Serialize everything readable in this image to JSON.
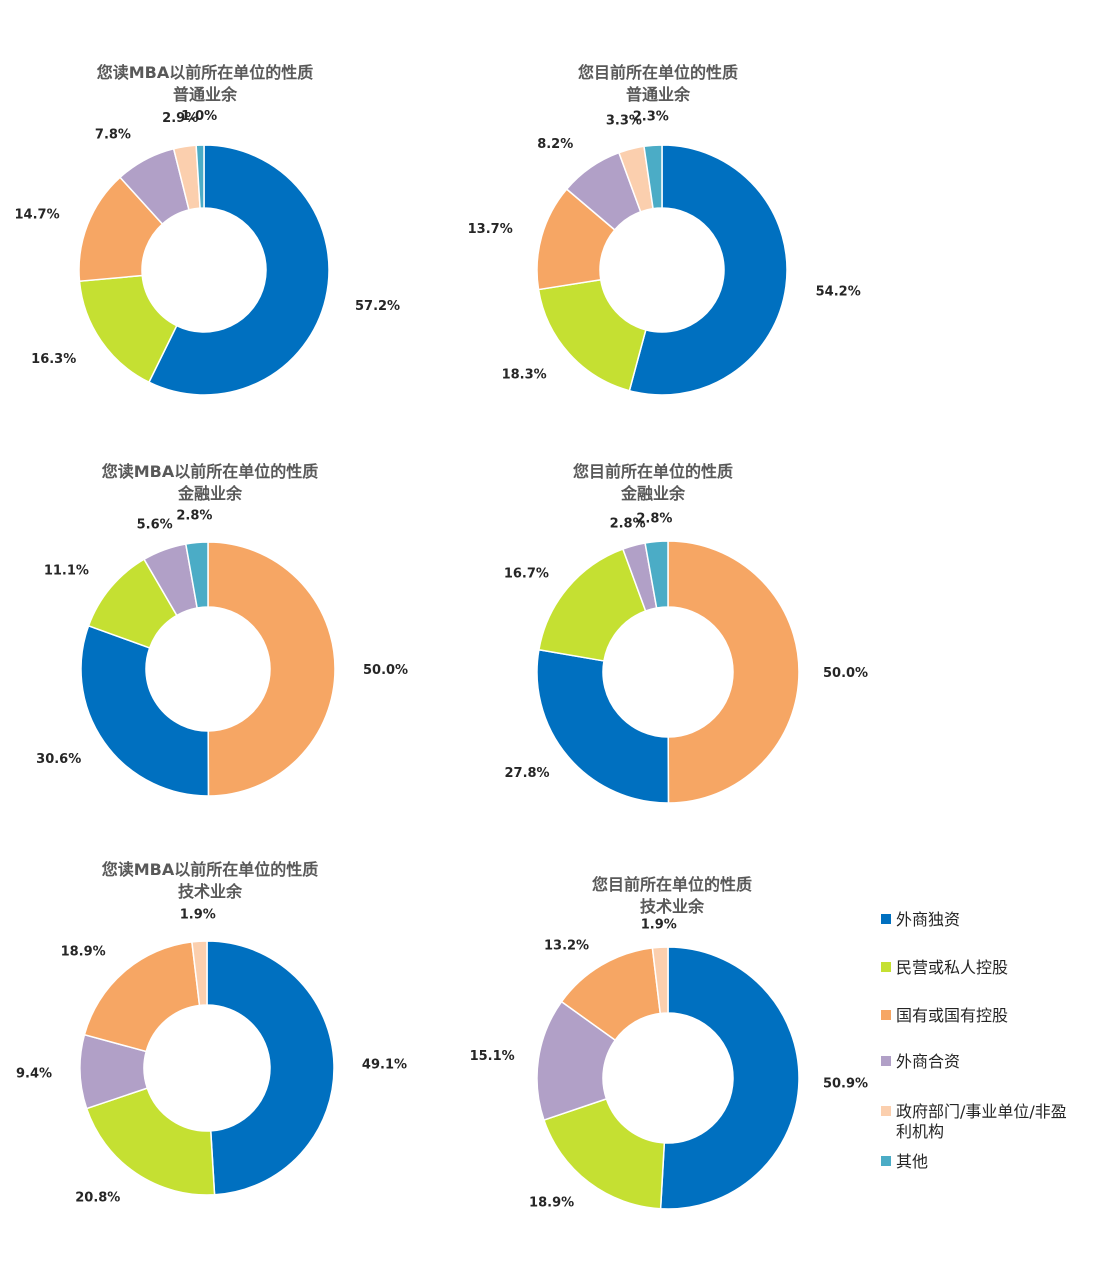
{
  "legend": {
    "entries": [
      {
        "label": "外商独资",
        "color": "#0070C0"
      },
      {
        "label": "民营或私人控股",
        "color": "#C5E032"
      },
      {
        "label": "国有或国有控股",
        "color": "#F6A664"
      },
      {
        "label": "外商合资",
        "color": "#B1A0C7"
      },
      {
        "label": [
          "政府部门/事业单位/非盈",
          "利机构"
        ],
        "color": "#FBCFAE"
      },
      {
        "label": "其他",
        "color": "#4BACC6"
      }
    ]
  },
  "chart_data": [
    {
      "type": "pie",
      "title": [
        "您读MBA以前所在单位的性质",
        "普通业余"
      ],
      "categories": [
        "外商独资",
        "民营或私人控股",
        "国有或国有控股",
        "外商合资",
        "政府部门/事业单位/非盈利机构",
        "其他"
      ],
      "values": [
        57.2,
        16.3,
        14.7,
        7.8,
        2.9,
        1.0
      ],
      "labels": [
        "57.2%",
        "16.3%",
        "14.7%",
        "7.8%",
        "2.9%",
        "1.0%"
      ]
    },
    {
      "type": "pie",
      "title": [
        "您目前所在单位的性质",
        "普通业余"
      ],
      "categories": [
        "外商独资",
        "民营或私人控股",
        "国有或国有控股",
        "外商合资",
        "政府部门/事业单位/非盈利机构",
        "其他"
      ],
      "values": [
        54.2,
        18.3,
        13.7,
        8.2,
        3.3,
        2.3
      ],
      "labels": [
        "54.2%",
        "18.3%",
        "13.7%",
        "8.2%",
        "3.3%",
        "2.3%"
      ]
    },
    {
      "type": "pie",
      "title": [
        "您读MBA以前所在单位的性质",
        "金融业余"
      ],
      "categories": [
        "国有或国有控股",
        "外商独资",
        "民营或私人控股",
        "外商合资",
        "其他"
      ],
      "values": [
        50.0,
        30.6,
        11.1,
        5.6,
        2.8
      ],
      "labels": [
        "50.0%",
        "30.6%",
        "11.1%",
        "5.6%",
        "2.8%"
      ]
    },
    {
      "type": "pie",
      "title": [
        "您目前所在单位的性质",
        "金融业余"
      ],
      "categories": [
        "国有或国有控股",
        "外商独资",
        "民营或私人控股",
        "外商合资",
        "其他"
      ],
      "values": [
        50.0,
        27.8,
        16.7,
        2.8,
        2.8
      ],
      "labels": [
        "50.0%",
        "27.8%",
        "16.7%",
        "2.8%",
        "2.8%"
      ]
    },
    {
      "type": "pie",
      "title": [
        "您读MBA以前所在单位的性质",
        "技术业余"
      ],
      "categories": [
        "外商独资",
        "民营或私人控股",
        "外商合资",
        "国有或国有控股",
        "政府部门/事业单位/非盈利机构"
      ],
      "values": [
        49.1,
        20.8,
        9.4,
        18.9,
        1.9
      ],
      "labels": [
        "49.1%",
        "20.8%",
        "9.4%",
        "18.9%",
        "1.9%"
      ]
    },
    {
      "type": "pie",
      "title": [
        "您目前所在单位的性质",
        "技术业余"
      ],
      "categories": [
        "外商独资",
        "民营或私人控股",
        "外商合资",
        "国有或国有控股",
        "政府部门/事业单位/非盈利机构"
      ],
      "values": [
        50.9,
        18.9,
        15.1,
        13.2,
        1.9
      ],
      "labels": [
        "50.9%",
        "18.9%",
        "15.1%",
        "13.2%",
        "1.9%"
      ]
    }
  ]
}
